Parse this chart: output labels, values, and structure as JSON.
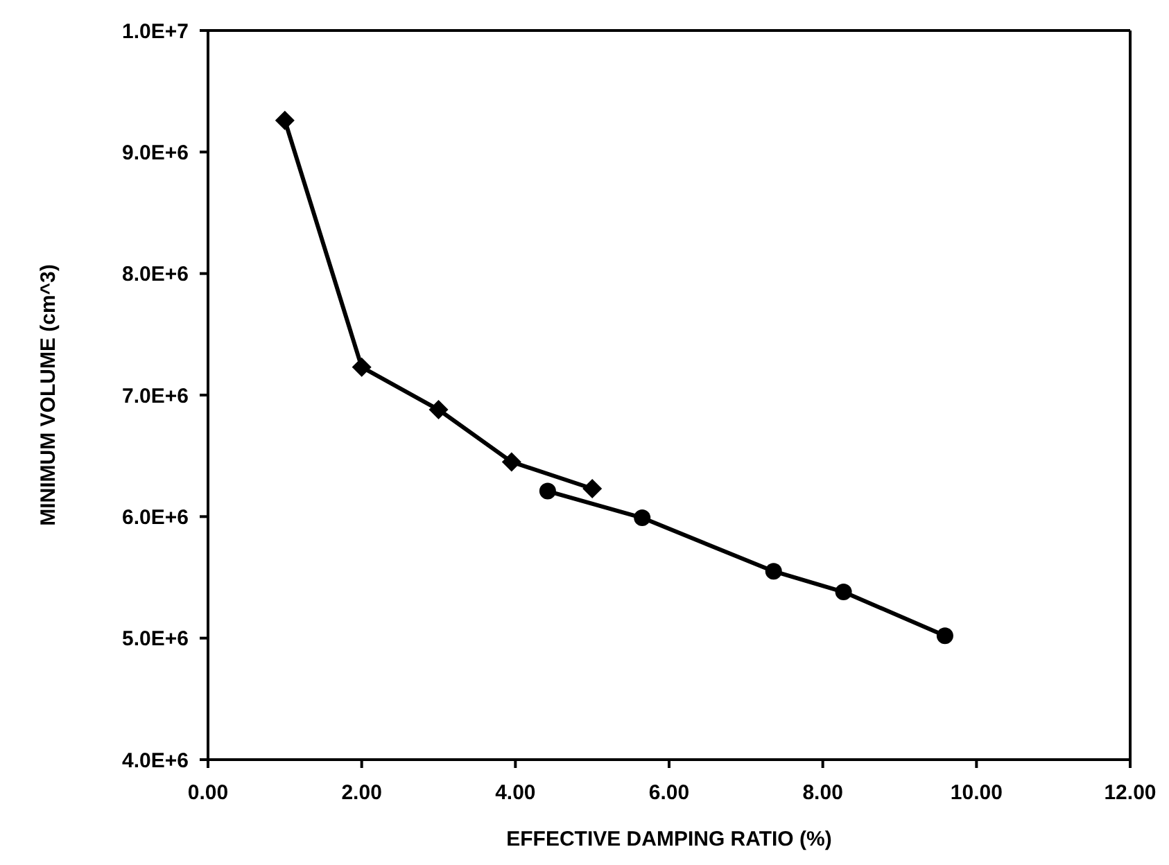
{
  "chart_data": {
    "type": "line",
    "xlabel": "EFFECTIVE DAMPING RATIO (%)",
    "ylabel": "MINIMUM VOLUME (cm^3)",
    "xlim": [
      0,
      12
    ],
    "xticks": [
      {
        "value": 0,
        "label": "0.00"
      },
      {
        "value": 2,
        "label": "2.00"
      },
      {
        "value": 4,
        "label": "4.00"
      },
      {
        "value": 6,
        "label": "6.00"
      },
      {
        "value": 8,
        "label": "8.00"
      },
      {
        "value": 10,
        "label": "10.00"
      },
      {
        "value": 12,
        "label": "12.00"
      }
    ],
    "ylim": [
      4000000,
      10000000
    ],
    "yticks": [
      {
        "value": 4000000,
        "label": "4.0E+6"
      },
      {
        "value": 5000000,
        "label": "5.0E+6"
      },
      {
        "value": 6000000,
        "label": "6.0E+6"
      },
      {
        "value": 7000000,
        "label": "7.0E+6"
      },
      {
        "value": 8000000,
        "label": "8.0E+6"
      },
      {
        "value": 9000000,
        "label": "9.0E+6"
      },
      {
        "value": 10000000,
        "label": "1.0E+7"
      }
    ],
    "line_style": "solid",
    "series": [
      {
        "color": "#000000",
        "marker": "diamond",
        "x": [
          1.0,
          2.0,
          3.0,
          3.95,
          5.0
        ],
        "values": [
          9260000,
          7230000,
          6880000,
          6450000,
          6230000
        ]
      },
      {
        "color": "#000000",
        "marker": "circle",
        "x": [
          4.42,
          5.65,
          7.36,
          8.27,
          9.59
        ],
        "values": [
          6210000,
          5990000,
          5550000,
          5380000,
          5020000
        ]
      }
    ]
  }
}
